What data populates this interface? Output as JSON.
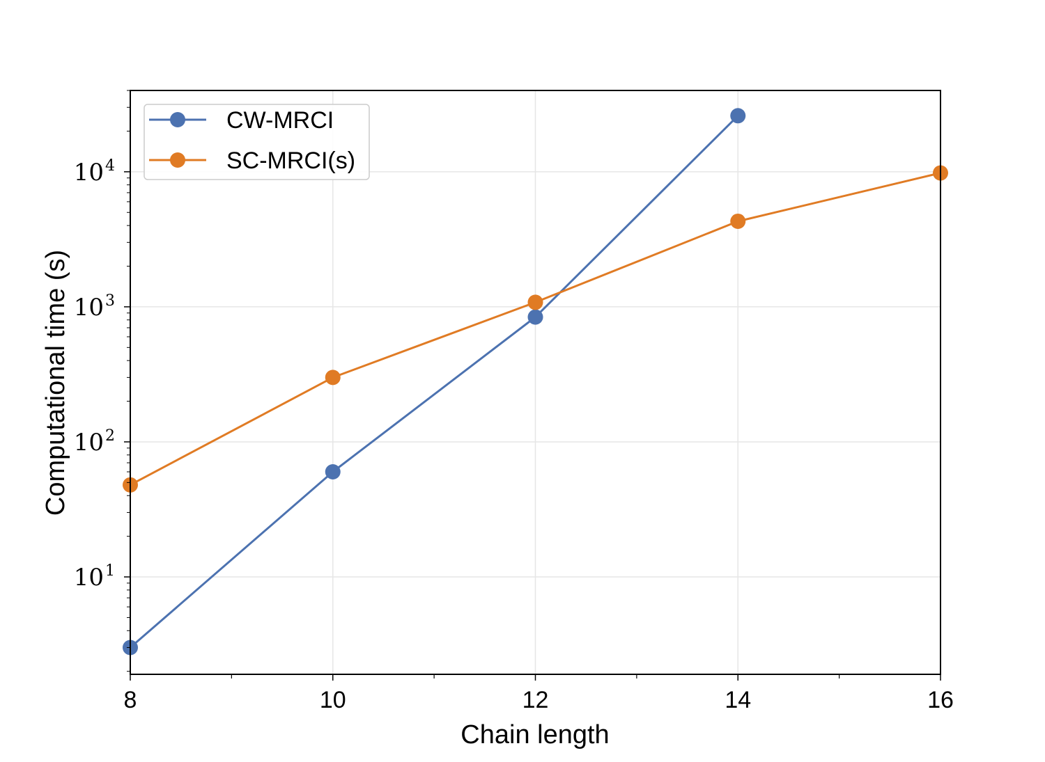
{
  "chart_data": {
    "type": "line",
    "title": "",
    "xlabel": "Chain length",
    "ylabel": "Computational time (s)",
    "xscale": "linear",
    "yscale": "log",
    "xlim": [
      8,
      16
    ],
    "ylim": [
      1.9,
      40000
    ],
    "x_ticks": [
      {
        "value": 8,
        "label": "8"
      },
      {
        "value": 10,
        "label": "10"
      },
      {
        "value": 12,
        "label": "12"
      },
      {
        "value": 14,
        "label": "14"
      },
      {
        "value": 16,
        "label": "16"
      }
    ],
    "x_minor_ticks": [
      9,
      11,
      13,
      15
    ],
    "y_ticks": [
      {
        "value": 10,
        "base": "10",
        "exp": "1"
      },
      {
        "value": 100,
        "base": "10",
        "exp": "2"
      },
      {
        "value": 1000,
        "base": "10",
        "exp": "3"
      },
      {
        "value": 10000,
        "base": "10",
        "exp": "4"
      }
    ],
    "grid": true,
    "legend_position": "top-left",
    "series": [
      {
        "name": "CW-MRCI",
        "color": "#4c72b0",
        "x": [
          8,
          10,
          12,
          14
        ],
        "y": [
          3,
          60,
          840,
          26000
        ]
      },
      {
        "name": "SC-MRCI(s)",
        "color": "#e07b24",
        "x": [
          8,
          10,
          12,
          14,
          16
        ],
        "y": [
          48,
          300,
          1080,
          4300,
          9800
        ]
      }
    ]
  }
}
